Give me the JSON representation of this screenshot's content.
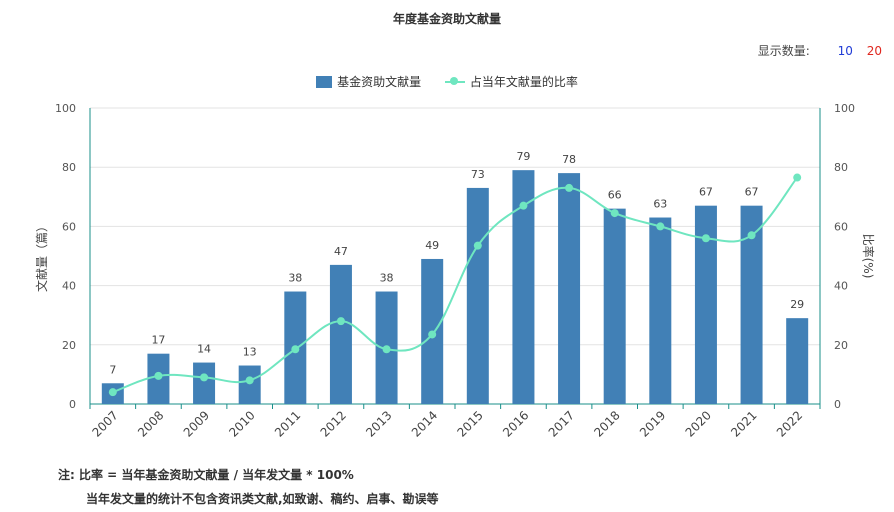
{
  "title": "年度基金资助文献量",
  "display_count": {
    "label": "显示数量:",
    "options": [
      "10",
      "20"
    ],
    "colors": [
      "#1f3bd6",
      "#e0271f"
    ]
  },
  "chart_data": {
    "type": "bar",
    "categories": [
      "2007",
      "2008",
      "2009",
      "2010",
      "2011",
      "2012",
      "2013",
      "2014",
      "2015",
      "2016",
      "2017",
      "2018",
      "2019",
      "2020",
      "2021",
      "2022"
    ],
    "series": [
      {
        "name": "基金资助文献量",
        "type": "bar",
        "color": "#4180b6",
        "values": [
          7,
          17,
          14,
          13,
          38,
          47,
          38,
          49,
          73,
          79,
          78,
          66,
          63,
          67,
          67,
          29
        ]
      },
      {
        "name": "占当年文献量的比率",
        "type": "line",
        "color": "#6fe6c0",
        "values": [
          4,
          9.5,
          9,
          8,
          18.5,
          28,
          18.5,
          23.5,
          53.5,
          67,
          73,
          64.5,
          60,
          56,
          57,
          76.5
        ]
      }
    ],
    "ylabel": "文献量（篇）",
    "y2label": "比率(%)",
    "ylim": [
      0,
      100
    ],
    "y2lim": [
      0,
      100
    ],
    "yticks": [
      0,
      20,
      40,
      60,
      80,
      100
    ],
    "y2ticks": [
      0,
      20,
      40,
      60,
      80,
      100
    ],
    "grid": true,
    "legend_position": "top-center"
  },
  "notes": {
    "line1": "注:  比率 = 当年基金资助文献量 / 当年发文量 * 100%",
    "line2": "当年发文量的统计不包含资讯类文献,如致谢、稿约、启事、勘误等"
  }
}
